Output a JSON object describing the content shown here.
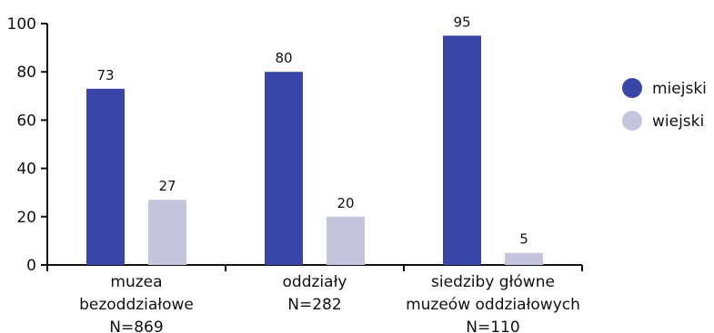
{
  "chart_data": {
    "type": "bar",
    "categories": [
      [
        "muzea",
        "bezoddziałowe",
        "N=869"
      ],
      [
        "oddziały",
        "N=282"
      ],
      [
        "siedziby główne",
        "muzeów oddziałowych",
        "N=110"
      ]
    ],
    "series": [
      {
        "name": "miejski",
        "values": [
          73,
          80,
          95
        ],
        "color": "#3a45a8"
      },
      {
        "name": "wiejski",
        "values": [
          27,
          20,
          5
        ],
        "color": "#c5c5de"
      }
    ],
    "ylim": [
      0,
      100
    ],
    "yticks": [
      0,
      20,
      40,
      60,
      80,
      100
    ],
    "grid": false,
    "legend_position": "right"
  }
}
